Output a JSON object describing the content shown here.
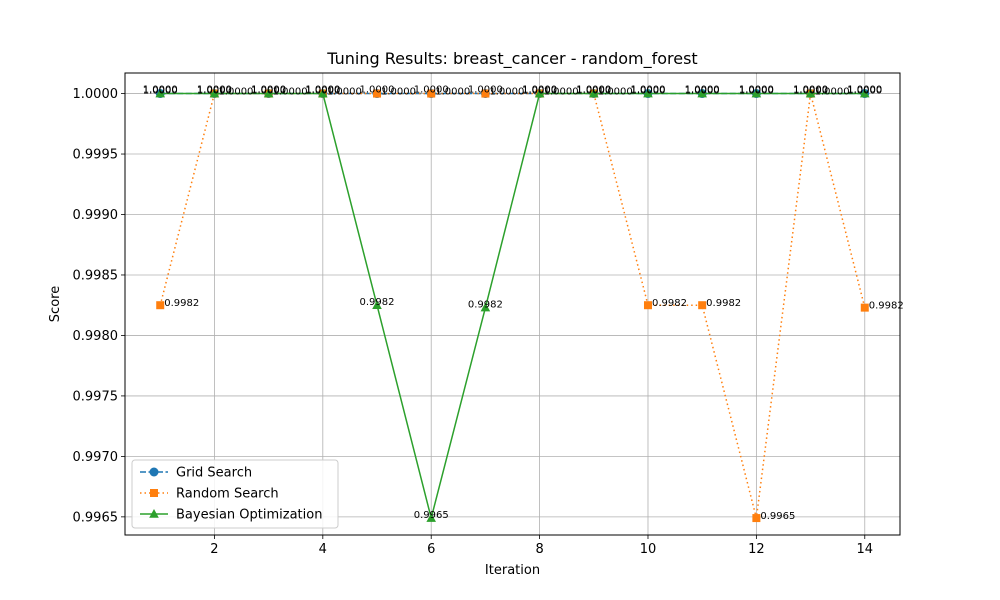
{
  "chart_data": {
    "type": "line",
    "title": "Tuning Results: breast_cancer - random_forest",
    "xlabel": "Iteration",
    "ylabel": "Score",
    "xlim": [
      0.35,
      14.65
    ],
    "ylim": [
      0.99635,
      1.00017
    ],
    "xticks": [
      2,
      4,
      6,
      8,
      10,
      12,
      14
    ],
    "xtick_labels": [
      "2",
      "4",
      "6",
      "8",
      "10",
      "12",
      "14"
    ],
    "yticks": [
      0.9965,
      0.997,
      0.9975,
      0.998,
      0.9985,
      0.999,
      0.9995,
      1.0
    ],
    "ytick_labels": [
      "0.9965",
      "0.9970",
      "0.9975",
      "0.9980",
      "0.9985",
      "0.9990",
      "0.9995",
      "1.0000"
    ],
    "grid": true,
    "legend_position": "lower-left",
    "x": [
      1,
      2,
      3,
      4,
      5,
      6,
      7,
      8,
      9,
      10,
      11,
      12,
      13,
      14
    ],
    "series": [
      {
        "name": "Grid Search",
        "color": "#1f77b4",
        "line_style": "dashed",
        "marker": "circle",
        "values": [
          1.0,
          1.0,
          1.0,
          1.0,
          1.0,
          1.0,
          1.0,
          1.0,
          1.0,
          1.0,
          1.0,
          1.0,
          1.0,
          1.0
        ],
        "labels": [
          "1.0000",
          "1.0000",
          "1.0000",
          "1.0000",
          "1.0000",
          "1.0000",
          "1.0000",
          "1.0000",
          "1.0000",
          "1.0000",
          "1.0000",
          "1.0000",
          "1.0000",
          "1.0000"
        ]
      },
      {
        "name": "Random Search",
        "color": "#ff7f0e",
        "line_style": "dotted",
        "marker": "square",
        "values": [
          0.99825,
          1.0,
          1.0,
          1.0,
          1.0,
          1.0,
          1.0,
          1.0,
          1.0,
          0.99825,
          0.99825,
          0.99649,
          1.0,
          0.99823
        ],
        "labels": [
          "0.9982",
          "1.0000",
          "1.0000",
          "1.0000",
          "1.0000",
          "1.0000",
          "1.0000",
          "1.0000",
          "1.0000",
          "0.9982",
          "0.9982",
          "0.9965",
          "1.0000",
          "0.9982"
        ]
      },
      {
        "name": "Bayesian Optimization",
        "color": "#2ca02c",
        "line_style": "solid",
        "marker": "triangle",
        "values": [
          1.0,
          1.0,
          1.0,
          1.0,
          0.99825,
          0.99649,
          0.99823,
          1.0,
          1.0,
          1.0,
          1.0,
          1.0,
          1.0,
          1.0
        ],
        "labels": [
          "1.0000",
          "1.0000",
          "1.0000",
          "1.0000",
          "0.9982",
          "0.9965",
          "0.9982",
          "1.0000",
          "1.0000",
          "1.0000",
          "1.0000",
          "1.0000",
          "1.0000",
          "1.0000"
        ]
      }
    ]
  }
}
